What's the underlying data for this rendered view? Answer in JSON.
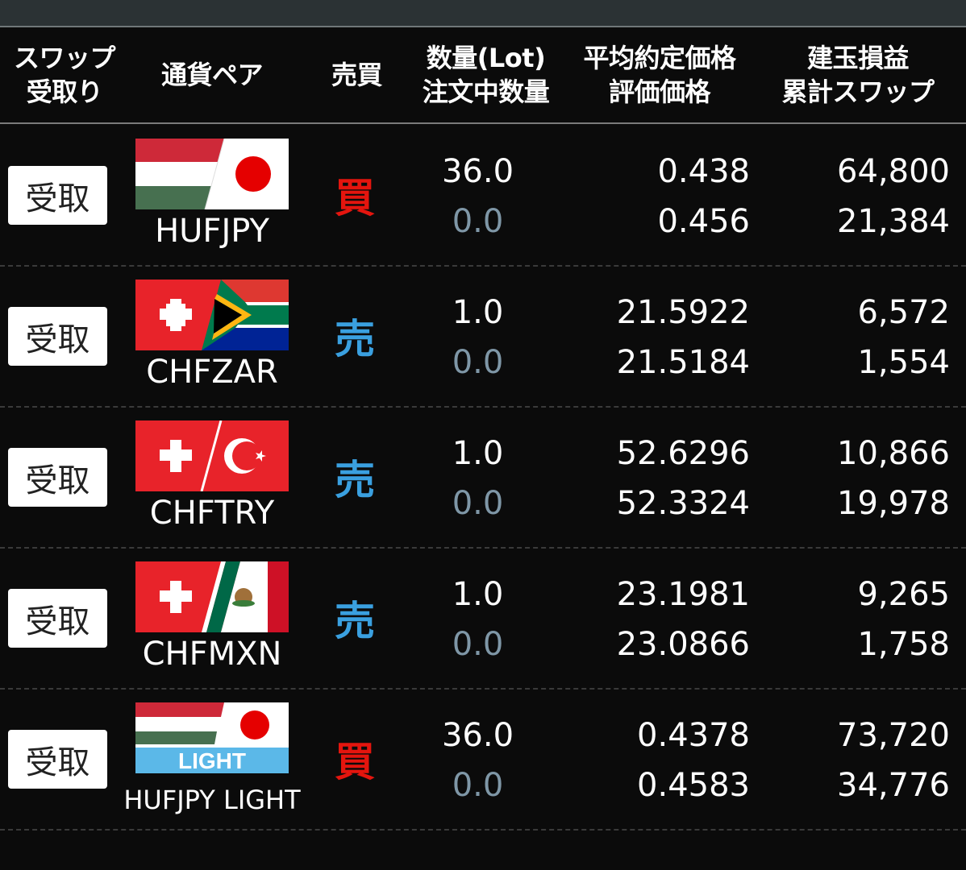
{
  "colors": {
    "buy": "#e4150e",
    "sell": "#3aa0e0",
    "pending_qty": "#7f97a7"
  },
  "header": {
    "swap_receive": [
      "スワップ",
      "受取り"
    ],
    "pair": "通貨ペア",
    "side": "売買",
    "quantity": [
      "数量(Lot)",
      "注文中数量"
    ],
    "price": [
      "平均約定価格",
      "評価価格"
    ],
    "pl": [
      "建玉損益",
      "累計スワップ"
    ]
  },
  "rows": [
    {
      "receive_label": "受取",
      "pair": "HUFJPY",
      "flag_icon": "hungary-japan-flag-icon",
      "side": "買",
      "side_type": "buy",
      "lot": "36.0",
      "pending": "0.0",
      "avg_price": "0.438",
      "eval_price": "0.456",
      "position_pl": "64,800",
      "cumulative_swap": "21,384"
    },
    {
      "receive_label": "受取",
      "pair": "CHFZAR",
      "flag_icon": "switzerland-south-africa-flag-icon",
      "side": "売",
      "side_type": "sell",
      "lot": "1.0",
      "pending": "0.0",
      "avg_price": "21.5922",
      "eval_price": "21.5184",
      "position_pl": "6,572",
      "cumulative_swap": "1,554"
    },
    {
      "receive_label": "受取",
      "pair": "CHFTRY",
      "flag_icon": "switzerland-turkey-flag-icon",
      "side": "売",
      "side_type": "sell",
      "lot": "1.0",
      "pending": "0.0",
      "avg_price": "52.6296",
      "eval_price": "52.3324",
      "position_pl": "10,866",
      "cumulative_swap": "19,978"
    },
    {
      "receive_label": "受取",
      "pair": "CHFMXN",
      "flag_icon": "switzerland-mexico-flag-icon",
      "side": "売",
      "side_type": "sell",
      "lot": "1.0",
      "pending": "0.0",
      "avg_price": "23.1981",
      "eval_price": "23.0866",
      "position_pl": "9,265",
      "cumulative_swap": "1,758"
    },
    {
      "receive_label": "受取",
      "pair": "HUFJPY LIGHT",
      "flag_icon": "hungary-japan-light-flag-icon",
      "flag_badge": "LIGHT",
      "side": "買",
      "side_type": "buy",
      "lot": "36.0",
      "pending": "0.0",
      "avg_price": "0.4378",
      "eval_price": "0.4583",
      "position_pl": "73,720",
      "cumulative_swap": "34,776"
    }
  ]
}
